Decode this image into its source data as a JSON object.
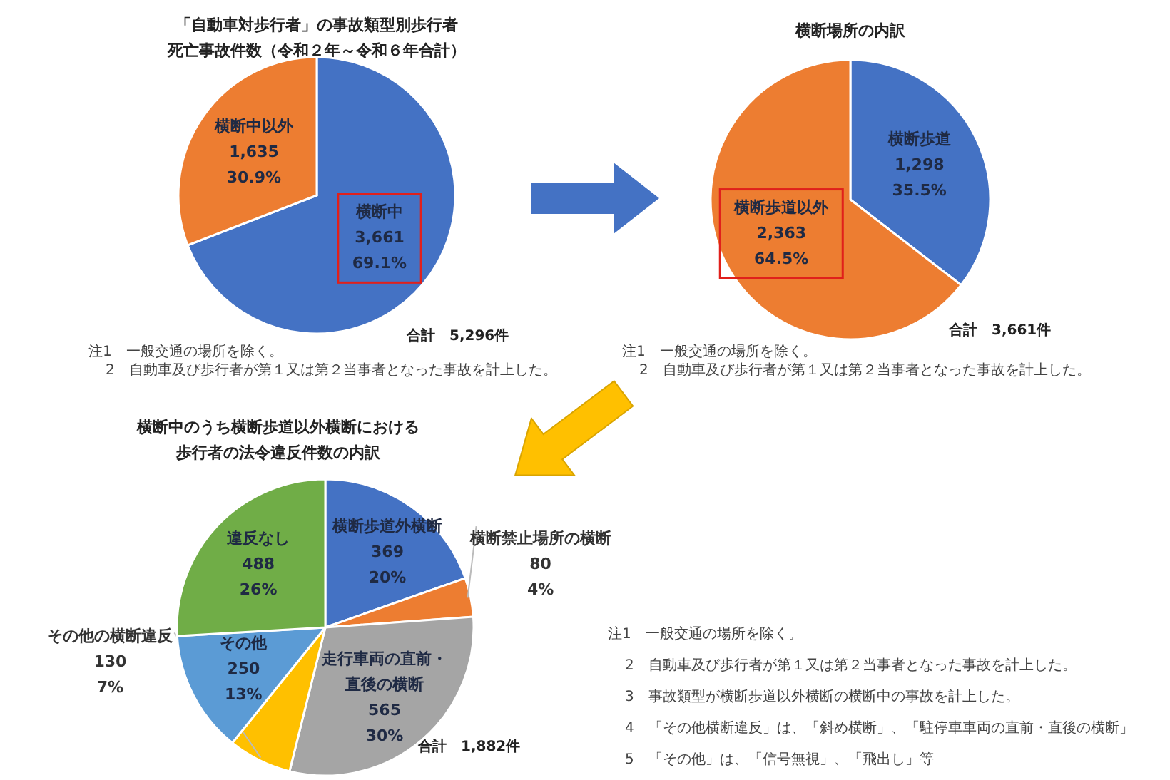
{
  "chart_data": [
    {
      "type": "pie",
      "title": "「自動車対歩行者」の事故類型別歩行者死亡事故件数（令和２年～令和６年合計）",
      "categories": [
        "横断中",
        "横断中以外"
      ],
      "values": [
        3661,
        1635
      ],
      "value_labels": [
        "3,661\n69.1%",
        "1,635\n30.9%"
      ],
      "colors": [
        "#4472c4",
        "#ed7d31"
      ],
      "annotations": [
        "合計　5,296件",
        "注1　一般交通の場所を除く。",
        "2　自動車及び歩行者が第１又は第２当事者となった事故を計上した。"
      ]
    },
    {
      "type": "pie",
      "title": "横断場所の内訳",
      "categories": [
        "横断歩道",
        "横断歩道以外"
      ],
      "values": [
        1298,
        2363
      ],
      "value_labels": [
        "1,298\n35.5%",
        "2,363\n64.5%"
      ],
      "colors": [
        "#4472c4",
        "#ed7d31"
      ],
      "annotations": [
        "合計　3,661件",
        "注1　一般交通の場所を除く。",
        "2　自動車及び歩行者が第１又は第２当事者となった事故を計上した。"
      ]
    },
    {
      "type": "pie",
      "title": "横断中のうち横断歩道以外横断における歩行者の法令違反件数の内訳",
      "categories": [
        "横断歩道外横断",
        "横断禁止場所の横断",
        "走行車両の直前・直後の横断",
        "その他の横断違反",
        "その他",
        "違反なし"
      ],
      "values": [
        369,
        80,
        565,
        130,
        250,
        488
      ],
      "value_labels": [
        "369\n20%",
        "80\n4%",
        "565\n30%",
        "130\n7%",
        "250\n13%",
        "488\n26%"
      ],
      "colors": [
        "#4472c4",
        "#ed7d31",
        "#a5a5a5",
        "#ffc000",
        "#5b9bd5",
        "#70ad47"
      ],
      "annotations": [
        "合計　1,882件",
        "注1　一般交通の場所を除く。",
        "2　自動車及び歩行者が第１又は第２当事者となった事故を計上した。",
        "3　事故類型が横断歩道以外横断の横断中の事故を計上した。",
        "4　「その他横断違反」は、「斜め横断」、「駐停車車両の直前・直後の横断」",
        "5　「その他」は、「信号無視」、「飛出し」等"
      ]
    }
  ]
}
